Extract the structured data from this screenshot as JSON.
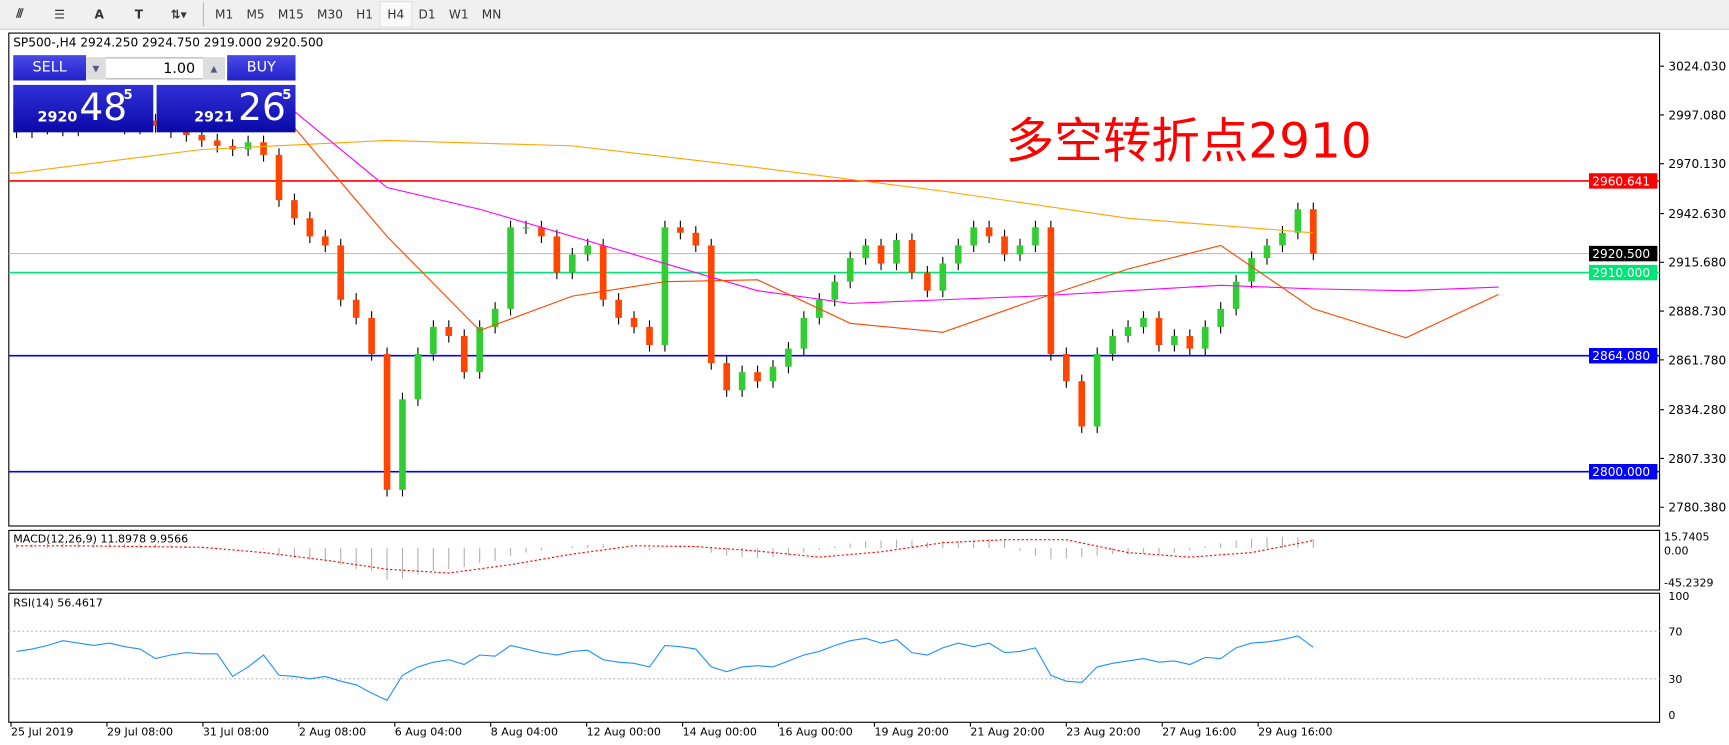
{
  "toolbar": {
    "tools": [
      {
        "name": "fibonacci-expansion-icon",
        "glyph": "⫻"
      },
      {
        "name": "fibonacci-fan-icon",
        "glyph": "☰"
      },
      {
        "name": "text-icon",
        "glyph": "A"
      },
      {
        "name": "text-label-icon",
        "glyph": "T"
      },
      {
        "name": "arrows-icon",
        "glyph": "⇅▾"
      }
    ],
    "timeframes": [
      "M1",
      "M5",
      "M15",
      "M30",
      "H1",
      "H4",
      "D1",
      "W1",
      "MN"
    ],
    "selected": "H4"
  },
  "chart": {
    "title": "SP500-,H4  2924.250 2924.750 2919.000 2920.500",
    "annotation": "多空转折点2910"
  },
  "trade": {
    "sell": "SELL",
    "buy": "BUY",
    "volume": "1.00",
    "sell_big": "2920",
    "sell_main": "48",
    "sell_sup": "5",
    "buy_big": "2921",
    "buy_main": "26",
    "buy_sup": "5"
  },
  "chart_data": {
    "type": "candlestick",
    "symbol": "SP500-",
    "timeframe": "H4",
    "price_axis": [
      "3024.030",
      "2997.080",
      "2970.130",
      "2942.630",
      "2915.680",
      "2888.730",
      "2861.780",
      "2834.280",
      "2807.330",
      "2780.380"
    ],
    "ylim": [
      2780.38,
      3024.03
    ],
    "closes": [
      2988,
      2990,
      2992,
      2989,
      2993,
      2995,
      2992,
      2990,
      2994,
      2991,
      2988,
      2986,
      2983,
      2980,
      2978,
      2982,
      2975,
      2950,
      2940,
      2930,
      2925,
      2895,
      2885,
      2865,
      2790,
      2840,
      2865,
      2880,
      2875,
      2855,
      2880,
      2890,
      2935,
      2935,
      2930,
      2910,
      2920,
      2925,
      2895,
      2885,
      2880,
      2870,
      2935,
      2932,
      2925,
      2860,
      2845,
      2855,
      2850,
      2858,
      2868,
      2885,
      2895,
      2905,
      2918,
      2925,
      2915,
      2928,
      2910,
      2900,
      2915,
      2925,
      2935,
      2930,
      2920,
      2925,
      2935,
      2865,
      2850,
      2825,
      2865,
      2875,
      2880,
      2885,
      2870,
      2875,
      2868,
      2880,
      2890,
      2905,
      2918,
      2925,
      2932,
      2945,
      2920.5
    ],
    "moving_averages": [
      {
        "color": "#ffa500",
        "step": 12,
        "values": [
          2965,
          2978,
          2983,
          2980,
          2968,
          2955,
          2940,
          2932
        ]
      },
      {
        "color": "#ff00ff",
        "start": 18,
        "step": 6,
        "values": [
          2999,
          2957,
          2945,
          2930,
          2915,
          2900,
          2893,
          2895,
          2897,
          2900,
          2903,
          2901,
          2900,
          2902
        ]
      },
      {
        "color": "#ff4500",
        "start": 18,
        "step": 6,
        "values": [
          2990,
          2930,
          2878,
          2897,
          2905,
          2906,
          2882,
          2877,
          2895,
          2912,
          2925,
          2890,
          2874,
          2898
        ]
      }
    ],
    "levels": [
      {
        "value": 2960.641,
        "label": "2960.641",
        "color": "#ff0000"
      },
      {
        "value": 2910.0,
        "label": "2910.000",
        "color": "#00e676"
      },
      {
        "value": 2864.08,
        "label": "2864.080",
        "color": "#0000ff"
      },
      {
        "value": 2800.0,
        "label": "2800.000",
        "color": "#0000ff"
      }
    ],
    "bid": {
      "value": 2920.5,
      "label": "2920.500"
    },
    "up_color": "#32cd32",
    "down_color": "#ff4500",
    "macd": {
      "label": "MACD(12,26,9) 11.8978 9.9566",
      "axis": [
        "15.7405",
        "0.00",
        "-45.2329"
      ],
      "range": [
        -45.2329,
        15.7405
      ],
      "histogram": [
        5,
        5,
        6,
        6,
        7,
        7,
        6,
        6,
        5,
        5,
        4,
        3,
        2,
        1,
        0,
        0,
        -1,
        -8,
        -12,
        -15,
        -18,
        -22,
        -28,
        -30,
        -42,
        -40,
        -35,
        -30,
        -28,
        -25,
        -20,
        -17,
        -10,
        -6,
        -3,
        0,
        2,
        4,
        5,
        2,
        -1,
        -3,
        1,
        3,
        2,
        -6,
        -10,
        -12,
        -13,
        -12,
        -10,
        -6,
        -2,
        2,
        6,
        9,
        10,
        11,
        10,
        8,
        9,
        10,
        11,
        12,
        12,
        -4,
        -10,
        -15,
        -14,
        -12,
        -10,
        -8,
        -9,
        -8,
        -9,
        -6,
        -3,
        2,
        6,
        10,
        12,
        14,
        15,
        14,
        11.9
      ],
      "signal_step": 4,
      "signal": [
        3,
        3,
        2,
        1,
        -6,
        -16,
        -28,
        -33,
        -22,
        -8,
        3,
        2,
        -4,
        -12,
        -5,
        7,
        11,
        11,
        -6,
        -12,
        -6,
        10
      ]
    },
    "rsi": {
      "label": "RSI(14) 56.4617",
      "axis": [
        "100",
        "70",
        "30",
        "0"
      ],
      "color": "#1e90ff",
      "values": [
        53,
        55,
        58,
        62,
        60,
        58,
        60,
        57,
        55,
        47,
        50,
        52,
        51,
        51,
        32,
        40,
        50,
        33,
        32,
        30,
        32,
        28,
        25,
        18,
        12,
        33,
        40,
        44,
        46,
        42,
        50,
        49,
        58,
        55,
        52,
        50,
        53,
        54,
        46,
        44,
        43,
        40,
        58,
        57,
        55,
        40,
        36,
        40,
        41,
        40,
        45,
        50,
        53,
        58,
        62,
        64,
        60,
        63,
        52,
        50,
        56,
        60,
        57,
        60,
        52,
        53,
        56,
        33,
        28,
        27,
        40,
        43,
        45,
        47,
        44,
        45,
        42,
        48,
        47,
        56,
        60,
        61,
        63,
        66,
        56.5
      ]
    },
    "time_axis": [
      "25 Jul 2019",
      "29 Jul 08:00",
      "31 Jul 08:00",
      "2 Aug 08:00",
      "6 Aug 04:00",
      "8 Aug 04:00",
      "12 Aug 00:00",
      "14 Aug 00:00",
      "16 Aug 00:00",
      "19 Aug 20:00",
      "21 Aug 20:00",
      "23 Aug 20:00",
      "27 Aug 16:00",
      "29 Aug 16:00"
    ]
  }
}
